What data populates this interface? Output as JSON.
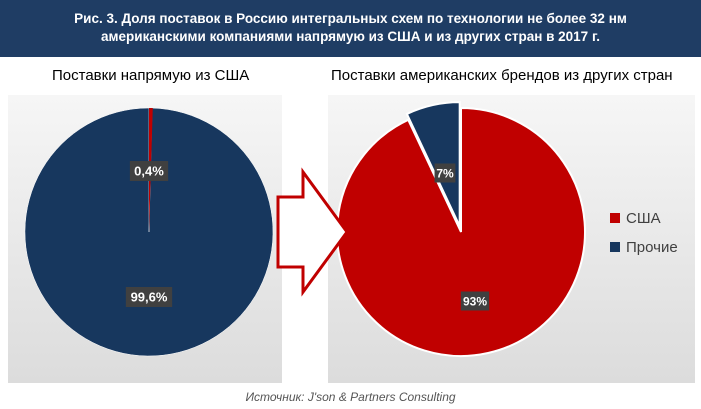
{
  "header": {
    "line1": "Рис. 3. Доля поставок в Россию интегральных схем по технологии не более 32 нм",
    "line2": "американскими компаниями напрямую из США и из других стран в 2017 г."
  },
  "chart_data": [
    {
      "type": "pie",
      "subtitle": "Поставки напрямую из США",
      "slices": [
        {
          "label": "США",
          "value": 0.4,
          "data_label": "0,4%",
          "color": "#c00000"
        },
        {
          "label": "Прочие",
          "value": 99.6,
          "data_label": "99,6%",
          "color": "#17375e"
        }
      ]
    },
    {
      "type": "pie",
      "subtitle": "Поставки американских брендов из других стран",
      "slices": [
        {
          "label": "США",
          "value": 93,
          "data_label": "93%",
          "color": "#c00000"
        },
        {
          "label": "Прочие",
          "value": 7,
          "data_label": "7%",
          "color": "#17375e"
        }
      ],
      "legend": {
        "placement": "right",
        "entries": [
          {
            "label": "США",
            "color": "#c00000"
          },
          {
            "label": "Прочие",
            "color": "#17375e"
          }
        ]
      }
    }
  ],
  "source": "Источник: J'son & Partners Consulting"
}
